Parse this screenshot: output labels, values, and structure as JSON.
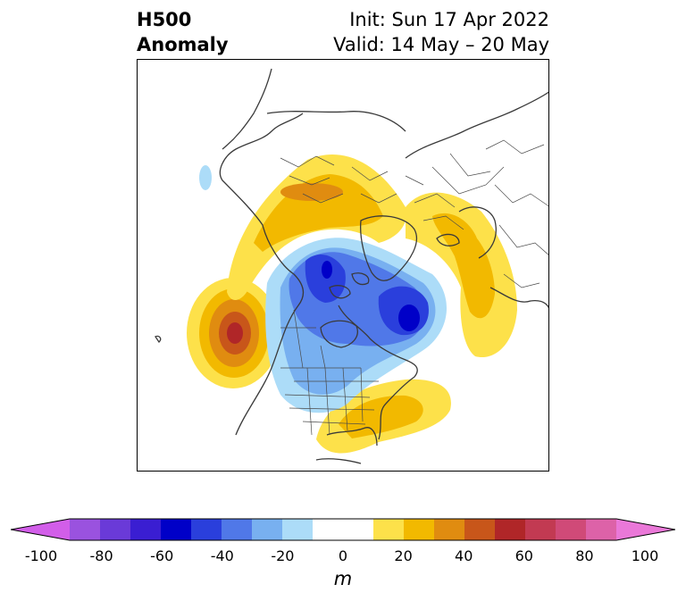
{
  "header": {
    "title_line1": "H500",
    "title_line2": "Anomaly",
    "init": "Init: Sun 17 Apr 2022",
    "valid": "Valid: 14 May – 20 May"
  },
  "colorbar": {
    "ticks": [
      "-100",
      "-80",
      "-60",
      "-40",
      "-20",
      "0",
      "20",
      "40",
      "60",
      "80",
      "100"
    ],
    "unit": "m",
    "levels": [
      -100,
      -90,
      -80,
      -70,
      -60,
      -50,
      -40,
      -30,
      -20,
      -10,
      10,
      20,
      30,
      40,
      50,
      60,
      70,
      80,
      90,
      100
    ],
    "colors": [
      "#d25ee9",
      "#9a52df",
      "#6a3ad8",
      "#3a1ed2",
      "#0000c8",
      "#2a3fdc",
      "#5078e8",
      "#78b0f0",
      "#acdcf8",
      "#ffffff",
      "#ffffff",
      "#fde14a",
      "#f2b900",
      "#e08c10",
      "#c8561a",
      "#b02628",
      "#c23a52",
      "#d04a78",
      "#dd62a8",
      "#ea78d8"
    ]
  },
  "map": {
    "projection": "north-polar-stereographic",
    "anomaly_centers": [
      {
        "region": "Gulf of Alaska / NE Pacific",
        "sign": "positive",
        "peak_m": 60
      },
      {
        "region": "Northern Siberia",
        "sign": "positive",
        "peak_m": 40
      },
      {
        "region": "Eastern Europe / Western Russia",
        "sign": "positive",
        "peak_m": 30
      },
      {
        "region": "Southeastern US / W Atlantic",
        "sign": "positive",
        "peak_m": 30
      },
      {
        "region": "Canadian Arctic",
        "sign": "negative",
        "peak_m": -60
      },
      {
        "region": "Greenland / N Atlantic",
        "sign": "negative",
        "peak_m": -60
      },
      {
        "region": "North Pacific (small)",
        "sign": "negative",
        "peak_m": -20
      }
    ]
  }
}
